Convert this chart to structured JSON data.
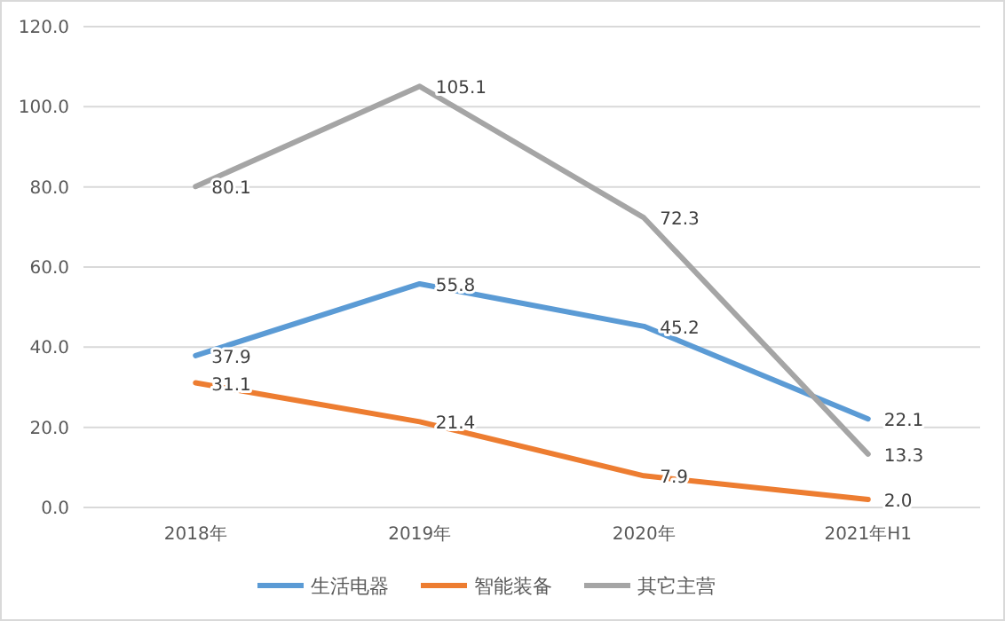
{
  "chart_data": {
    "type": "line",
    "categories": [
      "2018年",
      "2019年",
      "2020年",
      "2021年H1"
    ],
    "series": [
      {
        "name": "生活电器",
        "color": "#5b9bd5",
        "values": [
          37.9,
          55.8,
          45.2,
          22.1
        ],
        "value_labels": [
          "37.9",
          "55.8",
          "45.2",
          "22.1"
        ]
      },
      {
        "name": "智能装备",
        "color": "#ed7d31",
        "values": [
          31.1,
          21.4,
          7.9,
          2.0
        ],
        "value_labels": [
          "31.1",
          "21.4",
          "7.9",
          "2.0"
        ]
      },
      {
        "name": "其它主营",
        "color": "#a5a5a5",
        "values": [
          80.1,
          105.1,
          72.3,
          13.3
        ],
        "value_labels": [
          "80.1",
          "105.1",
          "72.3",
          "13.3"
        ]
      }
    ],
    "ylim": [
      0,
      120
    ],
    "yticks": [
      {
        "value": 0,
        "label": "0.0"
      },
      {
        "value": 20,
        "label": "20.0"
      },
      {
        "value": 40,
        "label": "40.0"
      },
      {
        "value": 60,
        "label": "60.0"
      },
      {
        "value": 80,
        "label": "80.0"
      },
      {
        "value": 100,
        "label": "100.0"
      },
      {
        "value": 120,
        "label": "120.0"
      }
    ],
    "grid": "y",
    "legend": "bottom",
    "marker": "none",
    "line_style": "solid"
  }
}
